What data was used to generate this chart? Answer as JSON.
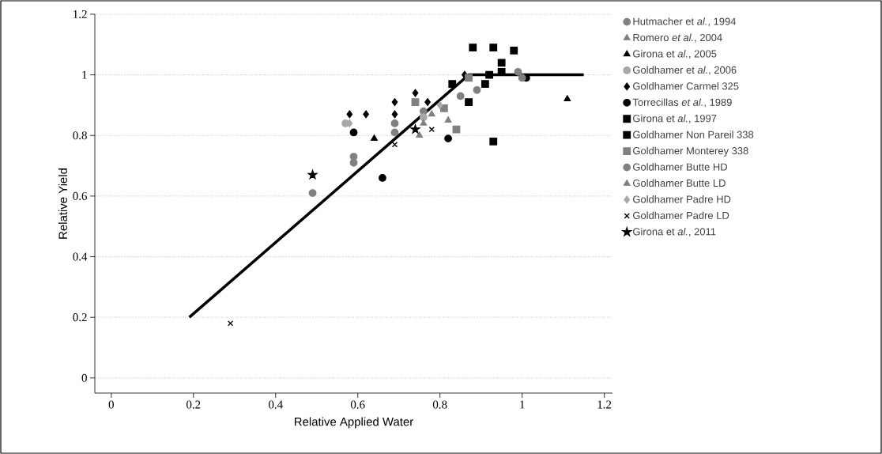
{
  "chart_data": {
    "type": "scatter",
    "xlabel": "Relative Applied Water",
    "ylabel": "Relative Yield",
    "xlim": [
      -0.04,
      1.22
    ],
    "ylim": [
      -0.05,
      1.2
    ],
    "xticks": [
      {
        "value": 0,
        "label": "0"
      },
      0.2,
      0.4,
      0.6,
      0.8,
      {
        "value": 1,
        "label": "1"
      },
      1.2
    ],
    "yticks": [
      {
        "value": 0,
        "label": "0"
      },
      0.2,
      0.4,
      0.6,
      0.8,
      {
        "value": 1,
        "label": "1"
      },
      1.2
    ],
    "grid": "y",
    "legend": "right",
    "series": [
      {
        "name": "Hutmacher et *al.*, 1994",
        "color": "#808080",
        "marker": "circle",
        "x": [
          0.49,
          0.59,
          0.59,
          0.69,
          0.69,
          0.76,
          0.85,
          0.89
        ],
        "values": [
          0.61,
          0.73,
          0.71,
          0.84,
          0.81,
          0.88,
          0.93,
          0.95
        ]
      },
      {
        "name": "Romero *et al.*, 2004",
        "color": "#808080",
        "marker": "triangle",
        "x": [
          0.75,
          0.78,
          0.82
        ],
        "values": [
          0.8,
          0.87,
          0.85
        ]
      },
      {
        "name": "Girona et *al.*, 2005",
        "color": "#000000",
        "marker": "triangle",
        "x": [
          0.64,
          1.11
        ],
        "values": [
          0.79,
          0.92
        ]
      },
      {
        "name": "Goldhamer et *al.*, 2006",
        "color": "#a8a8a8",
        "marker": "circle",
        "x": [
          0.57,
          0.76
        ],
        "values": [
          0.84,
          0.86
        ]
      },
      {
        "name": "Goldhamer Carmel 325",
        "color": "#000000",
        "marker": "diamond",
        "x": [
          0.58,
          0.62,
          0.69,
          0.69,
          0.74,
          0.77,
          0.86
        ],
        "values": [
          0.87,
          0.87,
          0.91,
          0.87,
          0.94,
          0.91,
          1.0
        ]
      },
      {
        "name": "Torrecillas *et al.*, 1989",
        "color": "#000000",
        "marker": "circle",
        "x": [
          0.59,
          0.66,
          0.82,
          1.01
        ],
        "values": [
          0.81,
          0.66,
          0.79,
          0.99
        ]
      },
      {
        "name": "Girona et *al.*, 1997",
        "color": "#000000",
        "marker": "square",
        "x": [
          0.83,
          0.88,
          0.93,
          0.93,
          0.95,
          0.98,
          0.92
        ],
        "values": [
          0.97,
          1.09,
          1.09,
          0.78,
          1.04,
          1.08,
          1.0
        ]
      },
      {
        "name": "Goldhamer Non Pareil 338",
        "color": "#000000",
        "marker": "square",
        "x": [
          0.87,
          0.91,
          0.95
        ],
        "values": [
          0.91,
          0.97,
          1.01
        ]
      },
      {
        "name": "Goldhamer Monterey 338",
        "color": "#808080",
        "marker": "square",
        "x": [
          0.74,
          0.81,
          0.84,
          0.87
        ],
        "values": [
          0.91,
          0.89,
          0.82,
          0.99
        ]
      },
      {
        "name": "Goldhamer Butte HD",
        "color": "#808080",
        "marker": "circle",
        "x": [
          0.99,
          1.0
        ],
        "values": [
          1.01,
          0.99
        ]
      },
      {
        "name": "Goldhamer Butte LD",
        "color": "#808080",
        "marker": "triangle",
        "x": [
          0.76
        ],
        "values": [
          0.84
        ]
      },
      {
        "name": "Goldhamer Padre HD",
        "color": "#a8a8a8",
        "marker": "diamond",
        "x": [
          0.58,
          0.8
        ],
        "values": [
          0.84,
          0.9
        ]
      },
      {
        "name": "Goldhamer Padre LD",
        "color": "#000000",
        "marker": "cross",
        "x": [
          0.29,
          0.69,
          0.78
        ],
        "values": [
          0.18,
          0.77,
          0.82
        ]
      },
      {
        "name": "Girona et *al.*, 2011",
        "color": "#000000",
        "marker": "star",
        "x": [
          0.49,
          0.74
        ],
        "values": [
          0.67,
          0.82
        ]
      },
      {
        "type": "line",
        "color": "#000000",
        "marker": "none",
        "line_style": "solid",
        "x": [
          0.19,
          0.87,
          1.15
        ],
        "values": [
          0.2,
          1.0,
          1.0
        ]
      }
    ]
  }
}
